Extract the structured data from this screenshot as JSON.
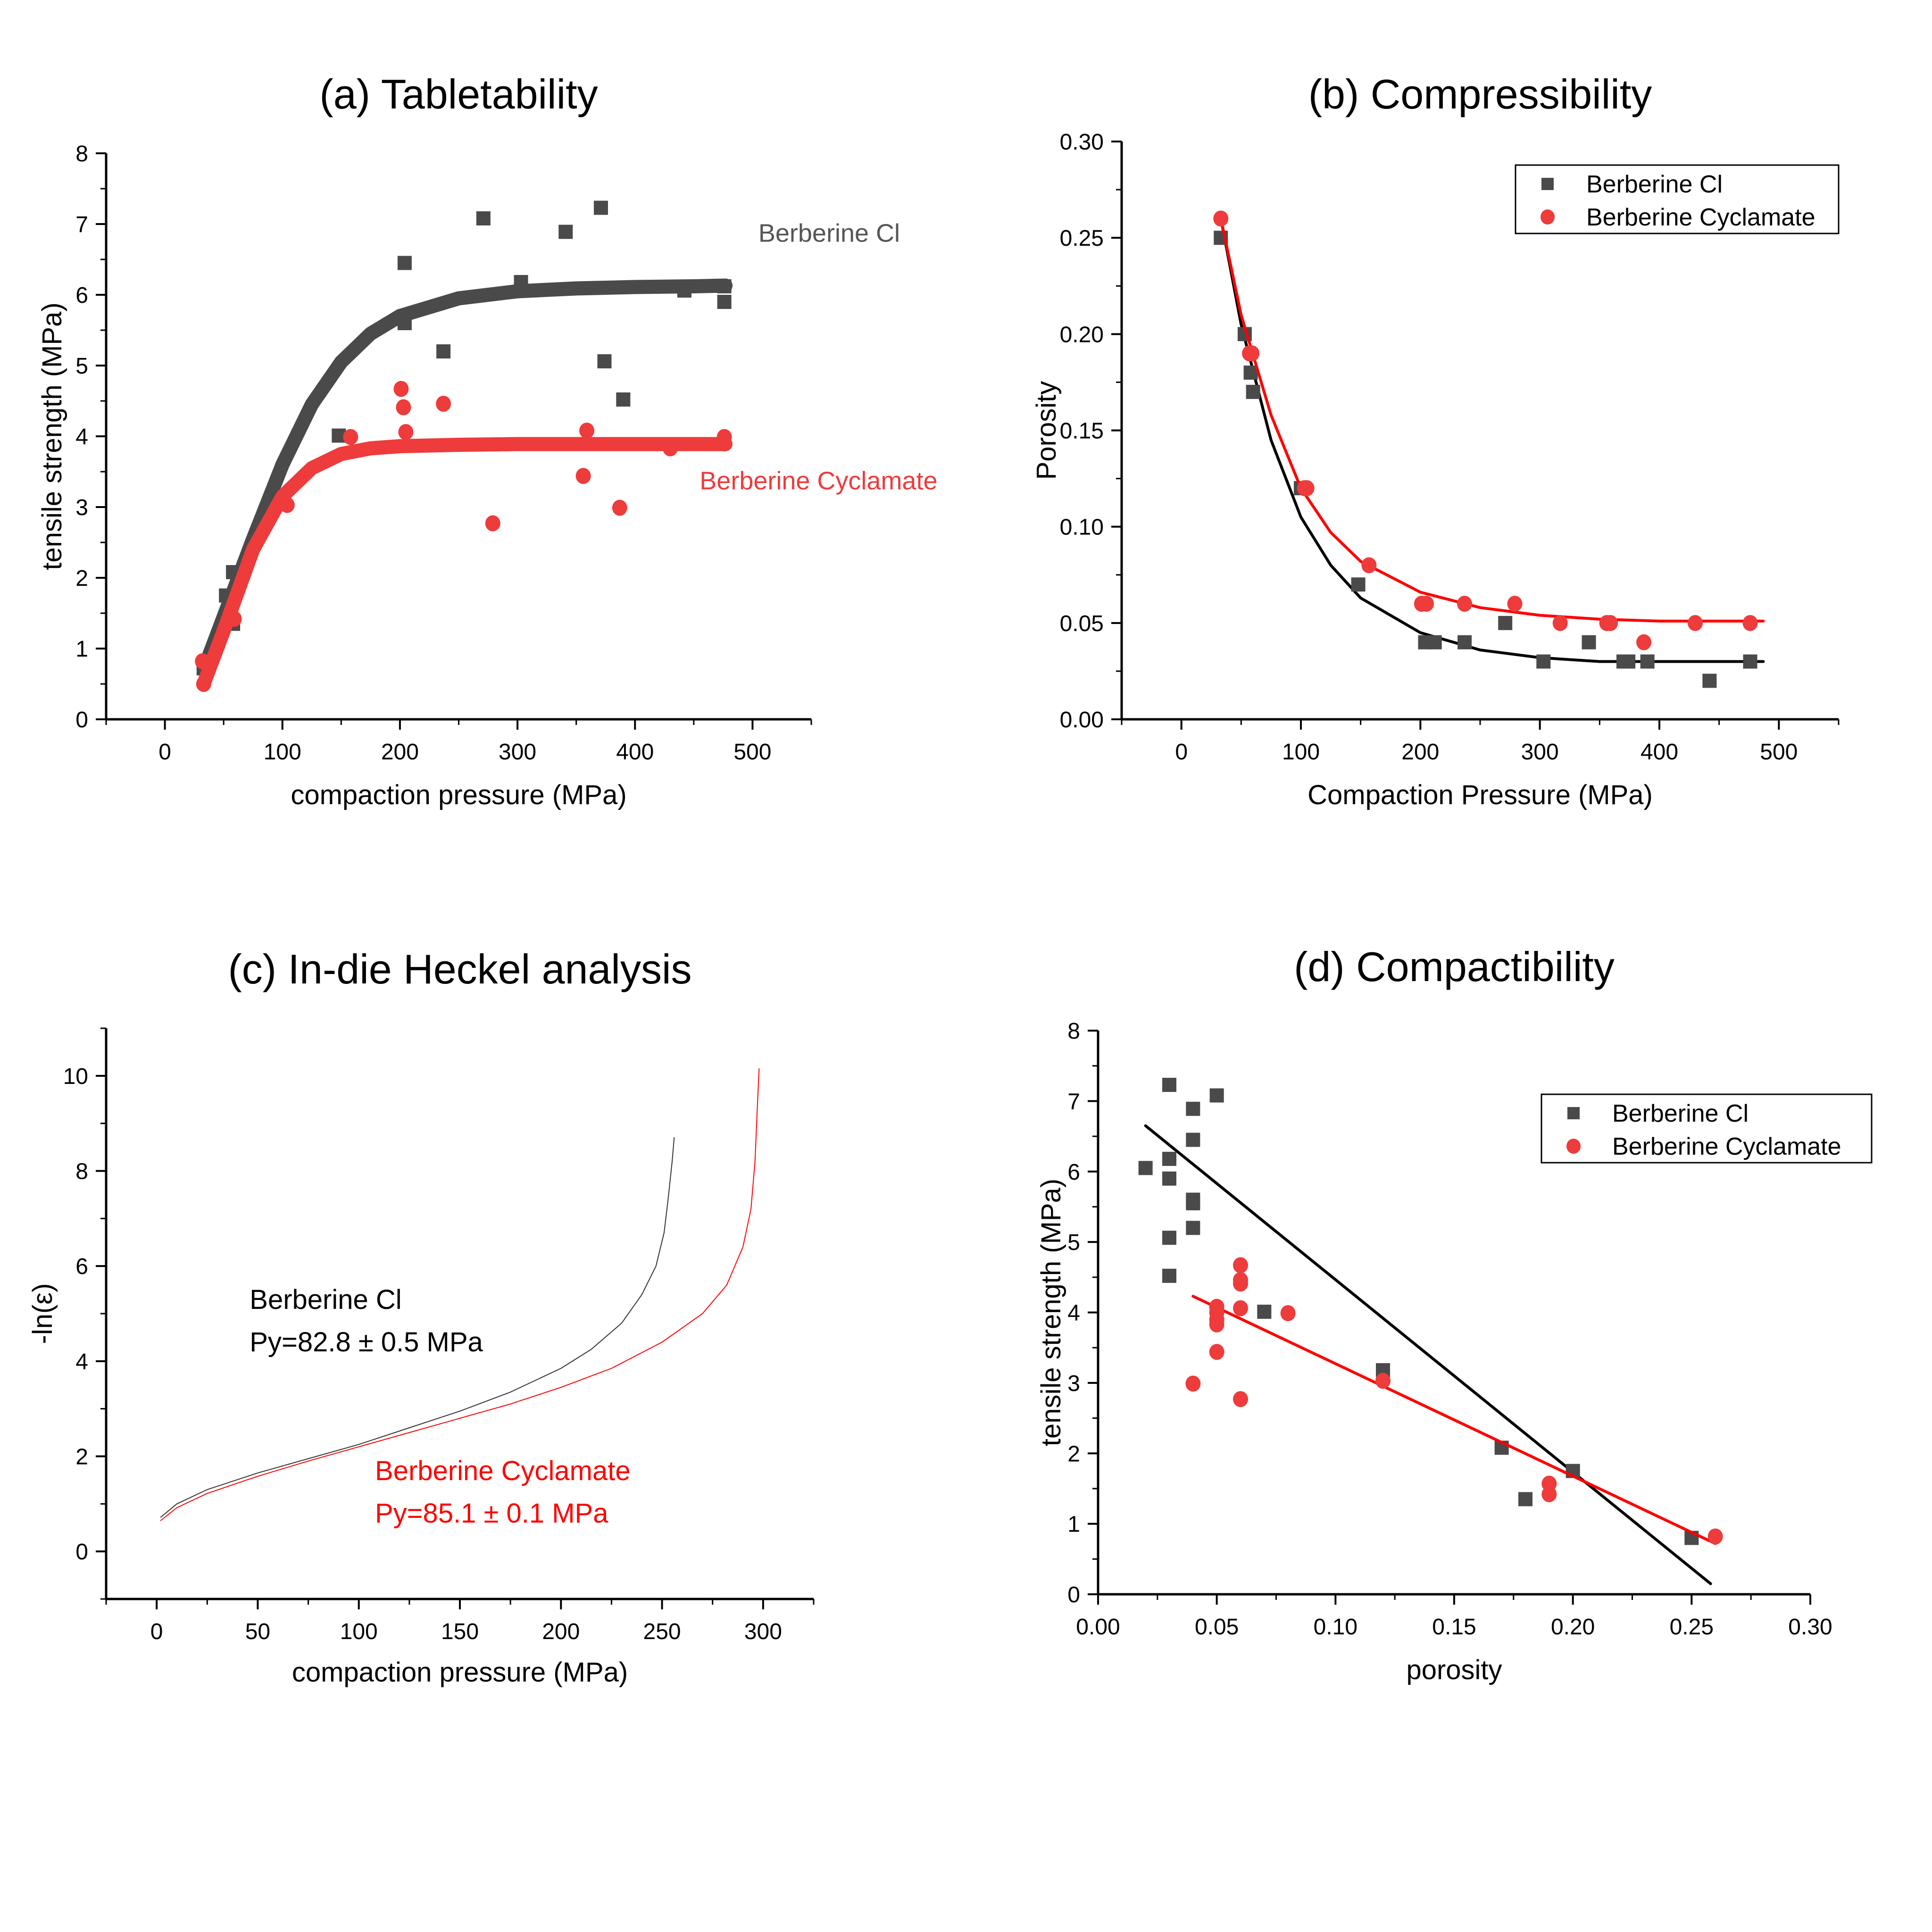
{
  "figure": {
    "panels": [
      "a",
      "b",
      "c",
      "d"
    ]
  },
  "colors": {
    "berberine_cl": "#4a4a4a",
    "berberine_cyclamate": "#ee3b3b",
    "fit_cl": "#000000",
    "fit_cyclamate": "#ff0000"
  },
  "chart_data": [
    {
      "id": "a",
      "type": "scatter",
      "title": "(a) Tabletability",
      "xlabel": "compaction pressure (MPa)",
      "ylabel": "tensile strength (MPa)",
      "xlim": [
        -50,
        550
      ],
      "ylim": [
        0,
        8
      ],
      "xticks": [
        0,
        100,
        200,
        300,
        400,
        500
      ],
      "yticks": [
        0,
        1,
        2,
        3,
        4,
        5,
        6,
        7,
        8
      ],
      "grid": false,
      "annotations": [
        {
          "text": "Berberine Cl",
          "series": "Berberine Cl",
          "at": [
            505,
            6.75
          ]
        },
        {
          "text": "Berberine Cyclamate",
          "series": "Berberine Cyclamate",
          "at": [
            455,
            3.25
          ]
        }
      ],
      "series": [
        {
          "name": "Berberine Cl",
          "marker": "square",
          "points": [
            [
              33,
              0.72
            ],
            [
              52,
              1.75
            ],
            [
              58,
              2.08
            ],
            [
              58,
              1.35
            ],
            [
              148,
              4.01
            ],
            [
              204,
              6.45
            ],
            [
              204,
              5.6
            ],
            [
              237,
              5.2
            ],
            [
              271,
              7.08
            ],
            [
              303,
              6.18
            ],
            [
              341,
              6.89
            ],
            [
              371,
              7.23
            ],
            [
              374,
              5.06
            ],
            [
              390,
              4.52
            ],
            [
              442,
              6.06
            ],
            [
              476,
              5.9
            ],
            [
              476,
              6.12
            ]
          ],
          "fit": {
            "type": "sigmoid",
            "x": [
              33,
              50,
              75,
              100,
              125,
              150,
              175,
              200,
              250,
              300,
              350,
              400,
              450,
              477
            ],
            "y": [
              0.7,
              1.45,
              2.55,
              3.6,
              4.45,
              5.05,
              5.45,
              5.7,
              5.95,
              6.05,
              6.09,
              6.11,
              6.12,
              6.13
            ]
          }
        },
        {
          "name": "Berberine Cyclamate",
          "marker": "circle",
          "points": [
            [
              32,
              0.82
            ],
            [
              33,
              0.5
            ],
            [
              59,
              1.42
            ],
            [
              104,
              3.03
            ],
            [
              158,
              3.99
            ],
            [
              201,
              4.67
            ],
            [
              203,
              4.41
            ],
            [
              205,
              4.06
            ],
            [
              237,
              4.46
            ],
            [
              279,
              2.77
            ],
            [
              356,
              3.44
            ],
            [
              359,
              4.08
            ],
            [
              387,
              2.99
            ],
            [
              430,
              3.83
            ],
            [
              476,
              3.99
            ],
            [
              476,
              3.9
            ]
          ],
          "fit": {
            "type": "sigmoid",
            "x": [
              33,
              50,
              75,
              100,
              125,
              150,
              175,
              200,
              250,
              300,
              350,
              400,
              450,
              477
            ],
            "y": [
              0.5,
              1.25,
              2.4,
              3.15,
              3.55,
              3.75,
              3.83,
              3.86,
              3.88,
              3.89,
              3.89,
              3.89,
              3.89,
              3.89
            ]
          }
        }
      ]
    },
    {
      "id": "b",
      "type": "scatter",
      "title": "(b) Compressibility",
      "xlabel": "Compaction Pressure (MPa)",
      "ylabel": "Porosity",
      "xlim": [
        -50,
        550
      ],
      "ylim": [
        0,
        0.3
      ],
      "xticks": [
        0,
        100,
        200,
        300,
        400,
        500
      ],
      "yticks": [
        0.0,
        0.05,
        0.1,
        0.15,
        0.2,
        0.25,
        0.3
      ],
      "ytick_labels": [
        "0.00",
        "0.05",
        "0.10",
        "0.15",
        "0.20",
        "0.25",
        "0.30"
      ],
      "grid": false,
      "legend": "top-right",
      "series": [
        {
          "name": "Berberine Cl",
          "marker": "square",
          "points": [
            [
              33,
              0.25
            ],
            [
              53,
              0.2
            ],
            [
              58,
              0.18
            ],
            [
              60,
              0.17
            ],
            [
              100,
              0.12
            ],
            [
              148,
              0.07
            ],
            [
              204,
              0.04
            ],
            [
              212,
              0.04
            ],
            [
              237,
              0.04
            ],
            [
              271,
              0.05
            ],
            [
              303,
              0.03
            ],
            [
              341,
              0.04
            ],
            [
              370,
              0.03
            ],
            [
              374,
              0.03
            ],
            [
              390,
              0.03
            ],
            [
              442,
              0.02
            ],
            [
              476,
              0.03
            ]
          ],
          "fit": {
            "type": "exp-decay",
            "x": [
              33,
              50,
              75,
              100,
              125,
              150,
              200,
              250,
              300,
              350,
              400,
              450,
              487
            ],
            "y": [
              0.26,
              0.205,
              0.145,
              0.105,
              0.08,
              0.063,
              0.045,
              0.036,
              0.032,
              0.03,
              0.03,
              0.03,
              0.03
            ]
          }
        },
        {
          "name": "Berberine Cyclamate",
          "marker": "circle",
          "points": [
            [
              33,
              0.26
            ],
            [
              57,
              0.19
            ],
            [
              59,
              0.19
            ],
            [
              103,
              0.12
            ],
            [
              105,
              0.12
            ],
            [
              157,
              0.08
            ],
            [
              201,
              0.06
            ],
            [
              205,
              0.06
            ],
            [
              237,
              0.06
            ],
            [
              279,
              0.06
            ],
            [
              317,
              0.05
            ],
            [
              356,
              0.05
            ],
            [
              359,
              0.05
            ],
            [
              387,
              0.04
            ],
            [
              430,
              0.05
            ],
            [
              476,
              0.05
            ]
          ],
          "fit": {
            "type": "exp-decay",
            "x": [
              33,
              50,
              75,
              100,
              125,
              150,
              200,
              250,
              300,
              350,
              400,
              450,
              487
            ],
            "y": [
              0.26,
              0.21,
              0.158,
              0.12,
              0.097,
              0.082,
              0.066,
              0.058,
              0.054,
              0.052,
              0.051,
              0.051,
              0.051
            ]
          }
        }
      ]
    },
    {
      "id": "c",
      "type": "line",
      "title": "(c) In-die Heckel analysis",
      "xlabel": "compaction pressure (MPa)",
      "ylabel": "-ln(ε)",
      "xlim": [
        -25,
        325
      ],
      "ylim": [
        -1,
        11
      ],
      "xticks": [
        0,
        50,
        100,
        150,
        200,
        250,
        300
      ],
      "yticks": [
        0,
        2,
        4,
        6,
        8,
        10
      ],
      "grid": false,
      "annotations": [
        {
          "lines": [
            "Berberine Cl",
            "Py=82.8 ± 0.5 MPa"
          ],
          "series": "Berberine Cl",
          "at": [
            46,
            5.1
          ]
        },
        {
          "lines": [
            "Berberine Cyclamate",
            "Py=85.1 ± 0.1 MPa"
          ],
          "series": "Berberine Cyclamate",
          "at": [
            108,
            1.5
          ]
        }
      ],
      "series": [
        {
          "name": "Berberine Cl",
          "Py_MPa": 82.8,
          "Py_err": 0.5,
          "x": [
            2,
            10,
            25,
            50,
            75,
            100,
            125,
            150,
            175,
            200,
            215,
            230,
            240,
            247,
            251,
            253,
            255,
            256
          ],
          "y": [
            0.72,
            1.0,
            1.3,
            1.65,
            1.95,
            2.25,
            2.6,
            2.95,
            3.35,
            3.85,
            4.25,
            4.8,
            5.4,
            6.0,
            6.7,
            7.4,
            8.2,
            8.7
          ]
        },
        {
          "name": "Berberine Cyclamate",
          "Py_MPa": 85.1,
          "Py_err": 0.1,
          "x": [
            2,
            10,
            25,
            50,
            75,
            100,
            125,
            150,
            175,
            200,
            225,
            250,
            270,
            282,
            290,
            294,
            296,
            297,
            298
          ],
          "y": [
            0.65,
            0.92,
            1.22,
            1.58,
            1.9,
            2.2,
            2.5,
            2.8,
            3.1,
            3.45,
            3.85,
            4.4,
            5.0,
            5.6,
            6.4,
            7.2,
            8.2,
            9.2,
            10.15
          ]
        }
      ]
    },
    {
      "id": "d",
      "type": "scatter",
      "title": "(d) Compactibility",
      "xlabel": "porosity",
      "ylabel": "tensile strength (MPa)",
      "xlim": [
        0,
        0.3
      ],
      "ylim": [
        0,
        8
      ],
      "xticks": [
        0.0,
        0.05,
        0.1,
        0.15,
        0.2,
        0.25,
        0.3
      ],
      "xtick_labels": [
        "0.00",
        "0.05",
        "0.10",
        "0.15",
        "0.20",
        "0.25",
        "0.30"
      ],
      "yticks": [
        0,
        1,
        2,
        3,
        4,
        5,
        6,
        7,
        8
      ],
      "grid": false,
      "legend": "top-right",
      "series": [
        {
          "name": "Berberine Cl",
          "marker": "square",
          "points": [
            [
              0.02,
              6.05
            ],
            [
              0.03,
              7.23
            ],
            [
              0.03,
              6.18
            ],
            [
              0.03,
              5.9
            ],
            [
              0.03,
              5.06
            ],
            [
              0.03,
              4.52
            ],
            [
              0.04,
              6.89
            ],
            [
              0.04,
              6.45
            ],
            [
              0.04,
              5.6
            ],
            [
              0.04,
              5.55
            ],
            [
              0.04,
              5.2
            ],
            [
              0.05,
              7.08
            ],
            [
              0.07,
              4.01
            ],
            [
              0.12,
              3.18
            ],
            [
              0.17,
              2.08
            ],
            [
              0.18,
              1.35
            ],
            [
              0.2,
              1.75
            ],
            [
              0.25,
              0.8
            ]
          ],
          "fit": {
            "type": "linear",
            "x": [
              0.02,
              0.258
            ],
            "y": [
              6.65,
              0.15
            ]
          }
        },
        {
          "name": "Berberine Cyclamate",
          "marker": "circle",
          "points": [
            [
              0.04,
              2.99
            ],
            [
              0.05,
              4.08
            ],
            [
              0.05,
              4.0
            ],
            [
              0.05,
              3.9
            ],
            [
              0.05,
              3.83
            ],
            [
              0.05,
              3.44
            ],
            [
              0.06,
              4.67
            ],
            [
              0.06,
              4.46
            ],
            [
              0.06,
              4.41
            ],
            [
              0.06,
              4.06
            ],
            [
              0.06,
              2.77
            ],
            [
              0.08,
              3.99
            ],
            [
              0.12,
              3.03
            ],
            [
              0.19,
              1.57
            ],
            [
              0.19,
              1.42
            ],
            [
              0.26,
              0.82
            ]
          ],
          "fit": {
            "type": "linear",
            "x": [
              0.04,
              0.26
            ],
            "y": [
              4.23,
              0.72
            ]
          }
        }
      ]
    }
  ]
}
